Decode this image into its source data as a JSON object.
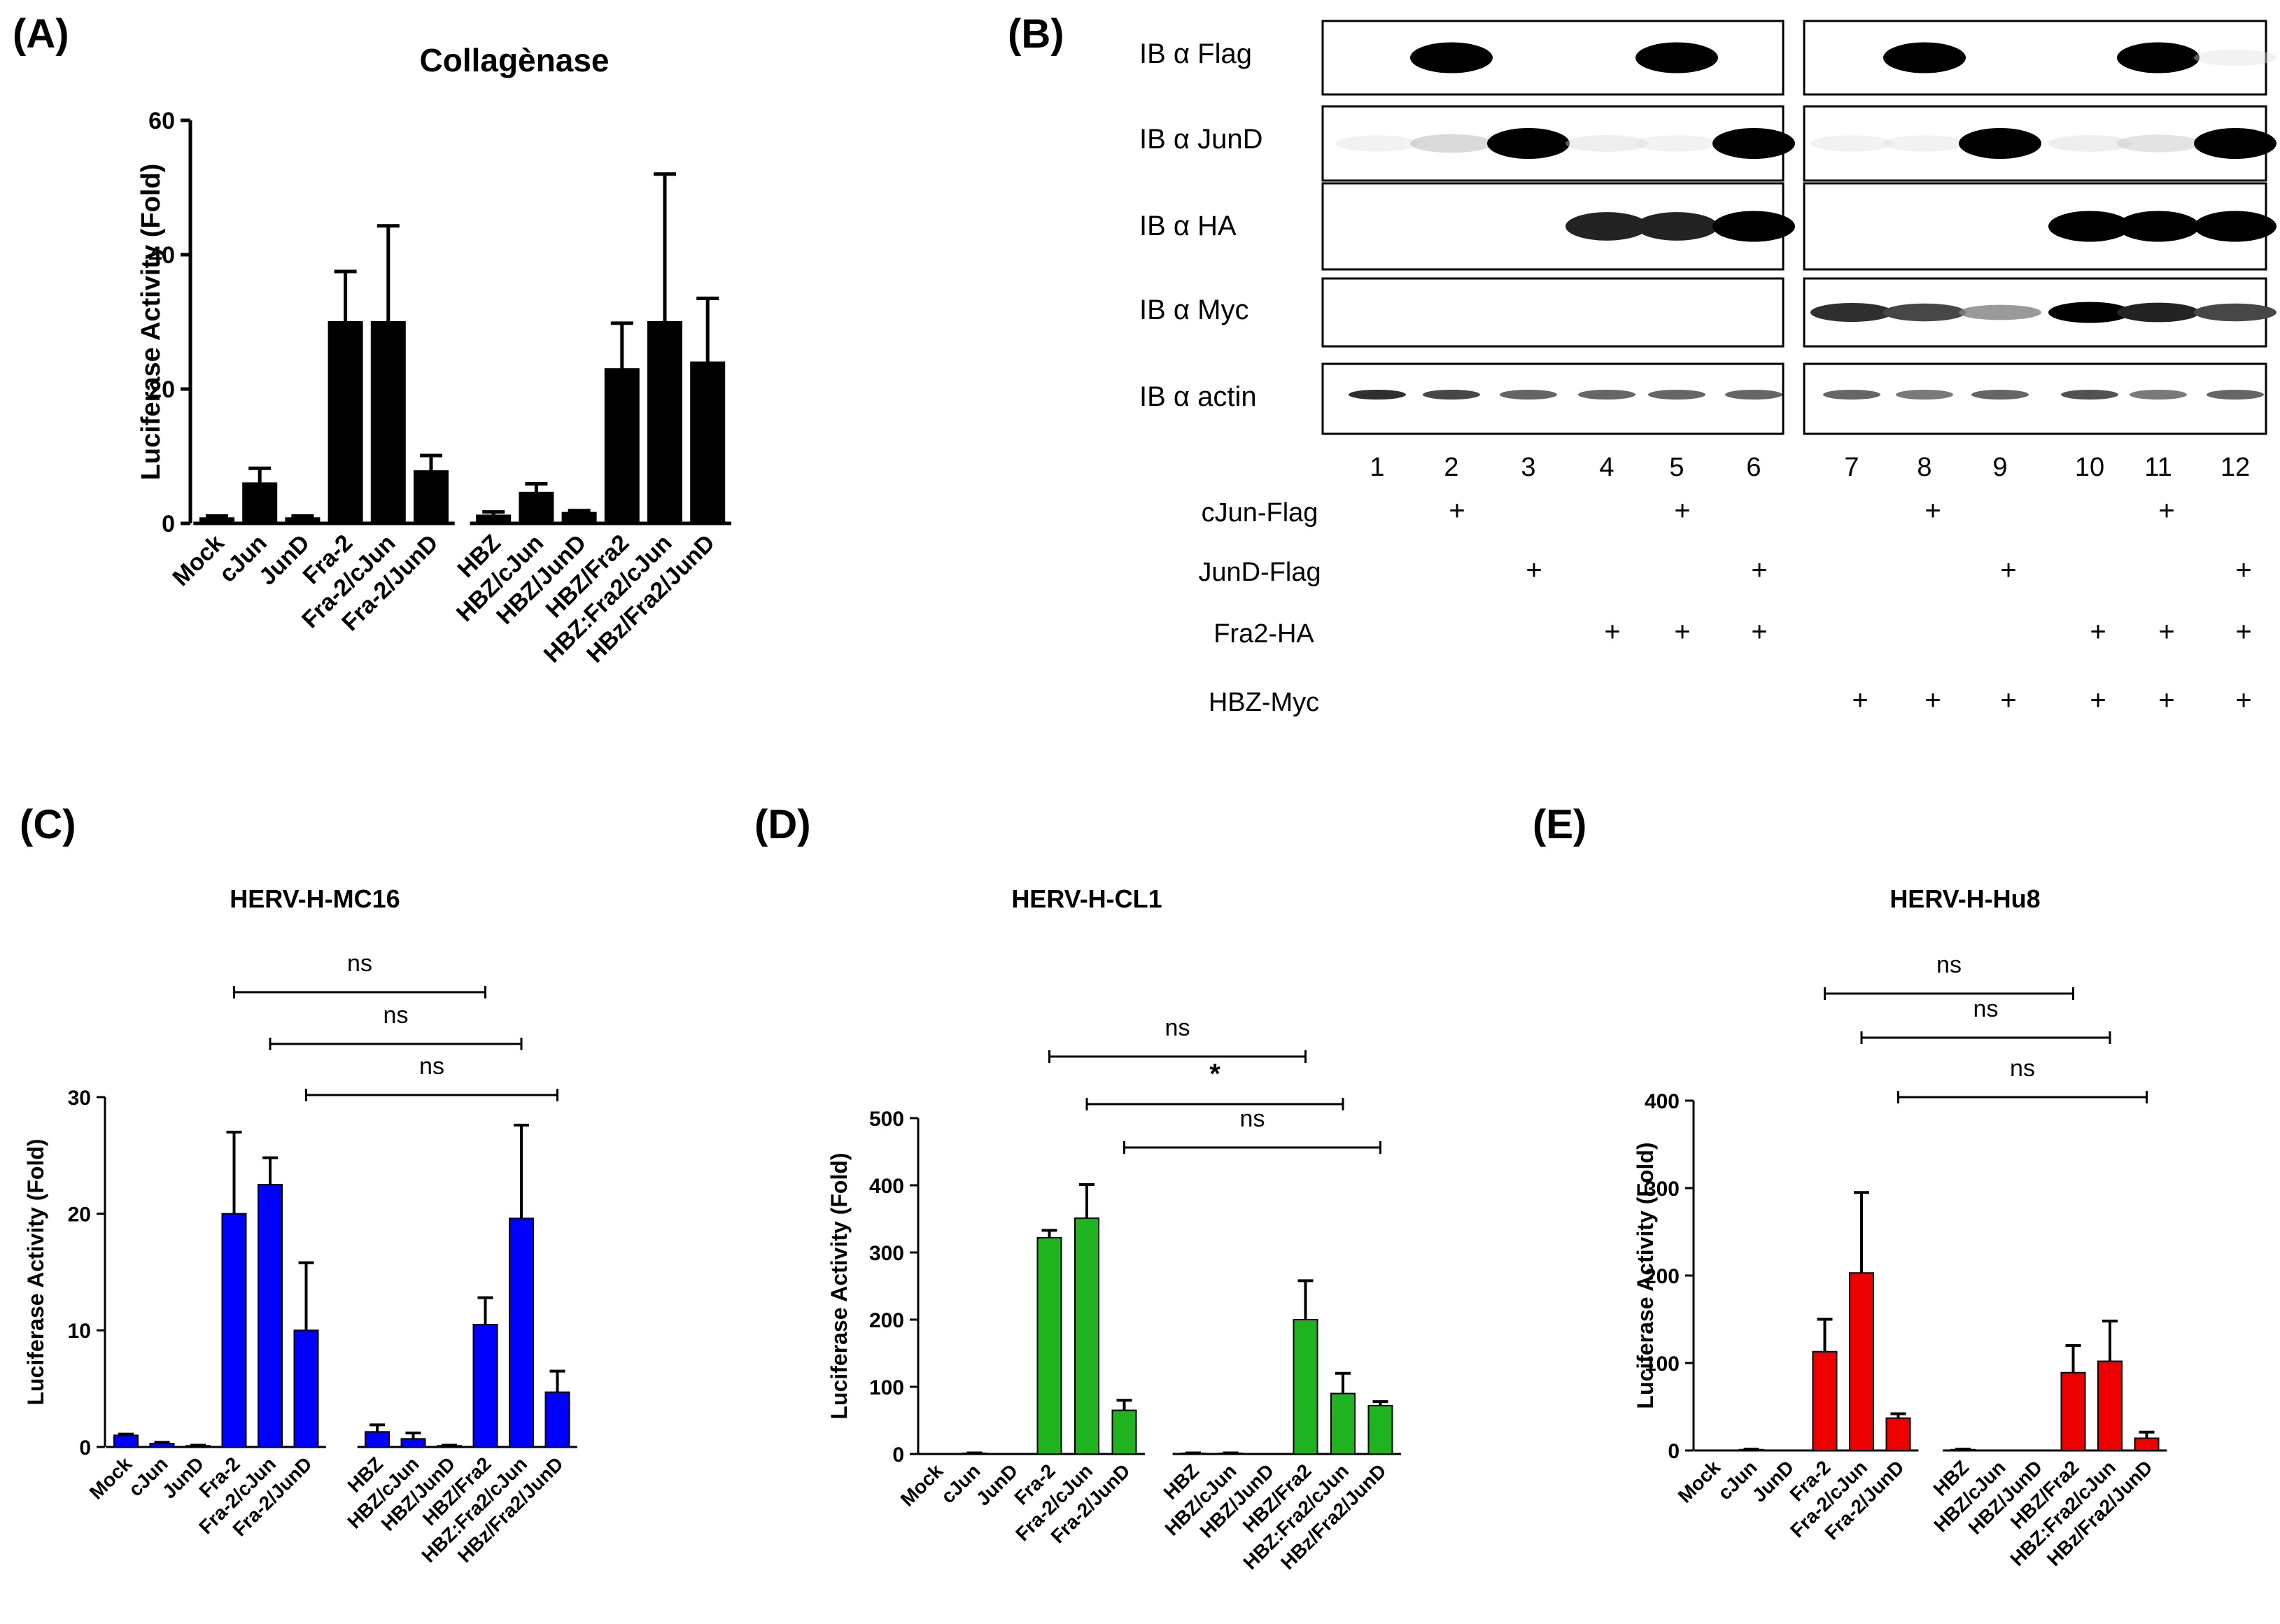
{
  "figure_labels": {
    "a": "(A)",
    "b": "(B)",
    "c": "(C)",
    "d": "(D)",
    "e": "(E)"
  },
  "colors": {
    "panel_a": "#000000",
    "panel_c": "#0000ff",
    "panel_d": "#1fb31f",
    "panel_e": "#ee0000"
  },
  "blot": {
    "rows": [
      "IB α Flag",
      "IB α JunD",
      "IB α HA",
      "IB α Myc",
      "IB α actin"
    ],
    "lanes": [
      "1",
      "2",
      "3",
      "4",
      "5",
      "6",
      "7",
      "8",
      "9",
      "10",
      "11",
      "12"
    ],
    "conditions": [
      {
        "label": "cJun-Flag",
        "marks": [
          "",
          "+",
          "",
          "",
          "+",
          "",
          "",
          "+",
          "",
          "",
          "+",
          ""
        ]
      },
      {
        "label": "JunD-Flag",
        "marks": [
          "",
          "",
          "+",
          "",
          "",
          "+",
          "",
          "",
          "+",
          "",
          "",
          "+"
        ]
      },
      {
        "label": "Fra2-HA",
        "marks": [
          "",
          "",
          "",
          "+",
          "+",
          "+",
          "",
          "",
          "",
          "+",
          "+",
          "+"
        ]
      },
      {
        "label": "HBZ-Myc",
        "marks": [
          "",
          "",
          "",
          "",
          "",
          "",
          "+",
          "+",
          "+",
          "+",
          "+",
          "+"
        ]
      }
    ],
    "band_intensities": {
      "IB α Flag": [
        0,
        1,
        0,
        0,
        1,
        0,
        0,
        1,
        0,
        0,
        1,
        0.05
      ],
      "IB α JunD": [
        0.05,
        0.2,
        1,
        0.08,
        0.05,
        1,
        0.05,
        0.05,
        1,
        0.08,
        0.15,
        1
      ],
      "IB α HA": [
        0,
        0,
        0,
        0.85,
        0.85,
        1,
        0,
        0,
        0,
        1,
        1,
        1
      ],
      "IB α Myc": [
        0,
        0,
        0,
        0,
        0,
        0,
        0.8,
        0.7,
        0.45,
        1,
        0.85,
        0.7
      ],
      "IB α actin": [
        0.8,
        0.7,
        0.6,
        0.6,
        0.6,
        0.6,
        0.6,
        0.55,
        0.6,
        0.65,
        0.55,
        0.6
      ]
    }
  },
  "chart_data": [
    {
      "id": "A",
      "type": "bar",
      "title": "Collagènase",
      "ylabel": "Luciferase Activity (Fold)",
      "ylim": [
        0,
        60
      ],
      "yticks": [
        0,
        20,
        40,
        60
      ],
      "categories": [
        "Mock",
        "cJun",
        "JunD",
        "Fra-2",
        "Fra-2/cJun",
        "Fra-2/JunD",
        "HBZ",
        "HBZ/cJun",
        "HBZ/JunD",
        "HBZ/Fra2",
        "HBZ:Fra2/cJun",
        "HBz/Fra2/JunD"
      ],
      "values": [
        0.8,
        6,
        0.8,
        30,
        30,
        7.8,
        1.2,
        4.6,
        1.6,
        23,
        30,
        24
      ],
      "errors": [
        0.3,
        2.2,
        0.3,
        7.5,
        14.3,
        2.3,
        0.5,
        1.3,
        0.3,
        6.8,
        22,
        9.5
      ],
      "comparisons": []
    },
    {
      "id": "C",
      "type": "bar",
      "title": "HERV-H-MC16",
      "ylabel": "Luciferase Activity (Fold)",
      "ylim": [
        0,
        30
      ],
      "yticks": [
        0,
        10,
        20,
        30
      ],
      "categories": [
        "Mock",
        "cJun",
        "JunD",
        "Fra-2",
        "Fra-2/cJun",
        "Fra-2/JunD",
        "HBZ",
        "HBZ/cJun",
        "HBZ/JunD",
        "HBZ/Fra2",
        "HBZ:Fra2/cJun",
        "HBz/Fra2/JunD"
      ],
      "values": [
        1,
        0.3,
        0.1,
        20,
        22.5,
        10,
        1.3,
        0.7,
        0.1,
        10.5,
        19.6,
        4.7
      ],
      "errors": [
        0.1,
        0.1,
        0.05,
        7,
        2.3,
        5.8,
        0.6,
        0.5,
        0.05,
        2.3,
        8,
        1.8
      ],
      "comparisons": [
        {
          "from": 3,
          "to": 10,
          "label": "ns"
        },
        {
          "from": 4,
          "to": 11,
          "label": "ns"
        },
        {
          "from": 5,
          "to": 12,
          "label": "ns"
        }
      ]
    },
    {
      "id": "D",
      "type": "bar",
      "title": "HERV-H-CL1",
      "ylabel": "Luciferase Activity (Fold)",
      "ylim": [
        0,
        500
      ],
      "yticks": [
        0,
        100,
        200,
        300,
        400,
        500
      ],
      "categories": [
        "Mock",
        "cJun",
        "JunD",
        "Fra-2",
        "Fra-2/cJun",
        "Fra-2/JunD",
        "HBZ",
        "HBZ/cJun",
        "HBZ/JunD",
        "HBZ/Fra2",
        "HBZ:Fra2/cJun",
        "HBz/Fra2/JunD"
      ],
      "values": [
        0,
        1,
        0,
        322,
        351,
        65,
        1,
        1,
        0,
        200,
        90,
        72
      ],
      "errors": [
        0,
        0.5,
        0,
        11,
        50,
        15,
        0.5,
        0.5,
        0,
        58,
        30,
        6
      ],
      "comparisons": [
        {
          "from": 3,
          "to": 10,
          "label": "ns"
        },
        {
          "from": 4,
          "to": 11,
          "label": "*"
        },
        {
          "from": 5,
          "to": 12,
          "label": "ns"
        }
      ]
    },
    {
      "id": "E",
      "type": "bar",
      "title": "HERV-H-Hu8",
      "ylabel": "Luciferase Activity (Fold)",
      "ylim": [
        0,
        400
      ],
      "yticks": [
        0,
        100,
        200,
        300,
        400
      ],
      "categories": [
        "Mock",
        "cJun",
        "JunD",
        "Fra-2",
        "Fra-2/cJun",
        "Fra-2/JunD",
        "HBZ",
        "HBZ/cJun",
        "HBZ/JunD",
        "HBZ/Fra2",
        "HBZ:Fra2/cJun",
        "HBz/Fra2/JunD"
      ],
      "values": [
        0,
        1,
        0,
        113,
        203,
        37,
        1,
        0,
        0,
        89,
        102,
        14
      ],
      "errors": [
        0,
        0.5,
        0,
        37,
        92,
        5,
        0.5,
        0,
        0,
        31,
        46,
        7
      ],
      "comparisons": [
        {
          "from": 3,
          "to": 10,
          "label": "ns"
        },
        {
          "from": 4,
          "to": 11,
          "label": "ns"
        },
        {
          "from": 5,
          "to": 12,
          "label": "ns"
        }
      ]
    }
  ]
}
